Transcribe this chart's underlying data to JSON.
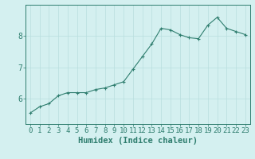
{
  "x": [
    0,
    1,
    2,
    3,
    4,
    5,
    6,
    7,
    8,
    9,
    10,
    11,
    12,
    13,
    14,
    15,
    16,
    17,
    18,
    19,
    20,
    21,
    22,
    23
  ],
  "y": [
    5.55,
    5.75,
    5.85,
    6.1,
    6.2,
    6.2,
    6.2,
    6.3,
    6.35,
    6.45,
    6.55,
    6.95,
    7.35,
    7.75,
    8.25,
    8.2,
    8.05,
    7.95,
    7.92,
    8.35,
    8.6,
    8.25,
    8.15,
    8.05
  ],
  "line_color": "#2e7d6e",
  "bg_color": "#d4f0f0",
  "grid_color": "#b8dede",
  "axis_color": "#2e7d6e",
  "xlabel": "Humidex (Indice chaleur)",
  "yticks": [
    6,
    7,
    8
  ],
  "ylim": [
    5.2,
    9.0
  ],
  "xlim": [
    -0.5,
    23.5
  ],
  "xlabel_fontsize": 7.5,
  "tick_fontsize": 6.5
}
